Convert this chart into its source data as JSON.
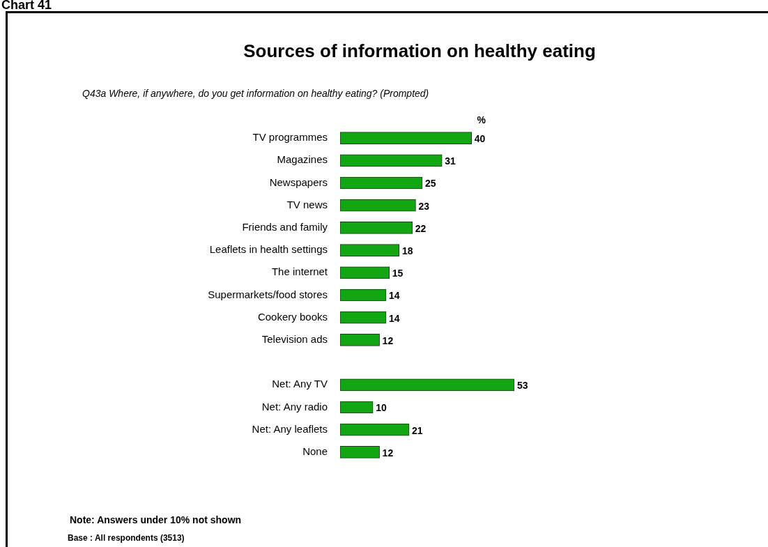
{
  "chart_data": {
    "type": "bar",
    "orientation": "horizontal",
    "title": "Sources of information on healthy eating",
    "subtitle": "Q43a Where, if anywhere, do you get information on healthy eating? (Prompted)",
    "xlabel": "%",
    "categories": [
      "TV programmes",
      "Magazines",
      "Newspapers",
      "TV news",
      "Friends and family",
      "Leaflets in health settings",
      "The internet",
      "Supermarkets/food stores",
      "Cookery books",
      "Television ads",
      null,
      "Net: Any TV",
      "Net: Any radio",
      "Net: Any leaflets",
      "None"
    ],
    "values": [
      40,
      31,
      25,
      23,
      22,
      18,
      15,
      14,
      14,
      12,
      null,
      53,
      10,
      21,
      12
    ],
    "color": "#12a612",
    "data_labels": true,
    "annotations": [
      "Chart 41",
      "Note: Answers under 10% not shown",
      "Base : All respondents (3513)"
    ]
  }
}
